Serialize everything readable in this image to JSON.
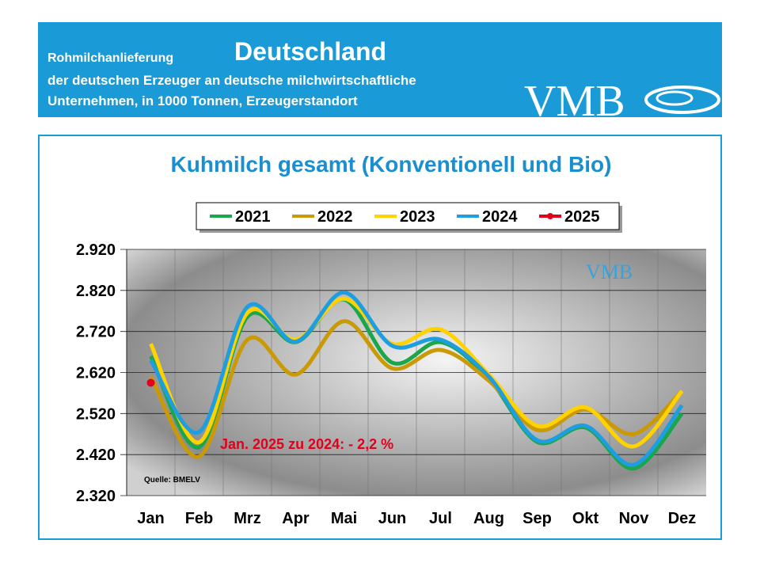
{
  "header": {
    "line1_small": "Rohmilchanlieferung",
    "line1_big": "Deutschland",
    "line2": "der deutschen Erzeuger an deutsche milchwirtschaftliche",
    "line3": "Unternehmen, in 1000 Tonnen, Erzeugerstandort",
    "logo": "VMB"
  },
  "chart_data": {
    "type": "line",
    "title": "Kuhmilch gesamt (Konventionell und Bio)",
    "categories": [
      "Jan",
      "Feb",
      "Mrz",
      "Apr",
      "Mai",
      "Jun",
      "Jul",
      "Aug",
      "Sep",
      "Okt",
      "Nov",
      "Dez"
    ],
    "series": [
      {
        "name": "2021",
        "color": "#1aa64a",
        "values": [
          2660,
          2438,
          2756,
          2694,
          2798,
          2644,
          2694,
          2605,
          2451,
          2486,
          2386,
          2520
        ]
      },
      {
        "name": "2022",
        "color": "#c99a06",
        "values": [
          2610,
          2415,
          2700,
          2615,
          2745,
          2630,
          2675,
          2600,
          2480,
          2530,
          2470,
          2575
        ]
      },
      {
        "name": "2023",
        "color": "#ffd200",
        "values": [
          2690,
          2450,
          2765,
          2700,
          2800,
          2690,
          2725,
          2615,
          2490,
          2535,
          2440,
          2575
        ]
      },
      {
        "name": "2024",
        "color": "#1e9ee0",
        "values": [
          2650,
          2475,
          2780,
          2695,
          2815,
          2685,
          2700,
          2610,
          2455,
          2490,
          2395,
          2540
        ]
      },
      {
        "name": "2025",
        "color": "#e3001b",
        "values": [
          2595,
          null,
          null,
          null,
          null,
          null,
          null,
          null,
          null,
          null,
          null,
          null
        ]
      }
    ],
    "ylim": [
      2320,
      2920
    ],
    "yticks": [
      {
        "value": 2320,
        "label": "2.320"
      },
      {
        "value": 2420,
        "label": "2.420"
      },
      {
        "value": 2520,
        "label": "2.520"
      },
      {
        "value": 2620,
        "label": "2.620"
      },
      {
        "value": 2720,
        "label": "2.720"
      },
      {
        "value": 2820,
        "label": "2.820"
      },
      {
        "value": 2920,
        "label": "2.920"
      }
    ],
    "grid": true,
    "annotations": [
      "Jan. 2025 zu 2024: - 2,2 %",
      "Quelle: BMELV"
    ],
    "watermark": "VMB"
  }
}
